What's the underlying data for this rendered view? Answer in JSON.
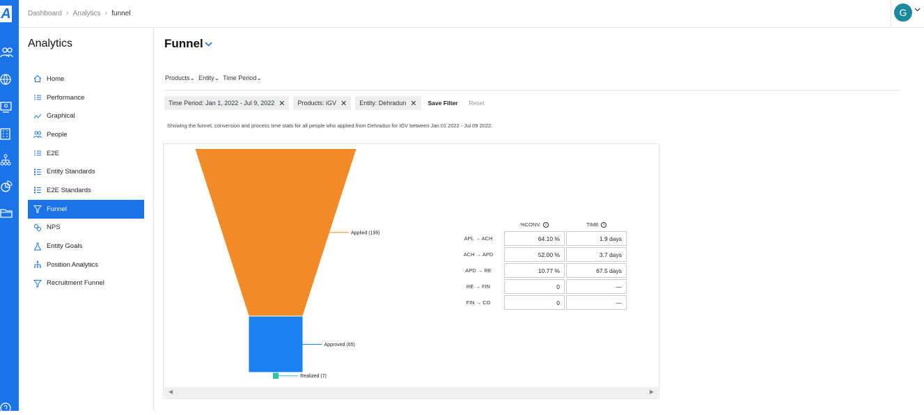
{
  "app": {
    "logo_letter": "A"
  },
  "rail_icons": [
    "people-icon",
    "globe-icon",
    "monitor-icon",
    "building-icon",
    "hierarchy-icon",
    "pie-chart-icon",
    "folder-icon",
    "question-icon"
  ],
  "breadcrumb": [
    "Dashboard",
    "Analytics",
    "funnel"
  ],
  "user": {
    "initial": "G"
  },
  "sidebar": {
    "title": "Analytics",
    "items": [
      {
        "label": "Home",
        "icon": "home-icon",
        "active": false
      },
      {
        "label": "Performance",
        "icon": "list-icon",
        "active": false
      },
      {
        "label": "Graphical",
        "icon": "line-chart-icon",
        "active": false
      },
      {
        "label": "People",
        "icon": "people-icon",
        "active": false
      },
      {
        "label": "E2E",
        "icon": "list-icon",
        "active": false
      },
      {
        "label": "Entity Standards",
        "icon": "checklist-icon",
        "active": false
      },
      {
        "label": "E2E Standards",
        "icon": "checklist-icon",
        "active": false
      },
      {
        "label": "Funnel",
        "icon": "funnel-icon",
        "active": true
      },
      {
        "label": "NPS",
        "icon": "nps-icon",
        "active": false
      },
      {
        "label": "Entity Goals",
        "icon": "flask-icon",
        "active": false
      },
      {
        "label": "Position Analytics",
        "icon": "hierarchy-icon",
        "active": false
      },
      {
        "label": "Recruitment Funnel",
        "icon": "funnel-icon",
        "active": false
      }
    ]
  },
  "page": {
    "title": "Funnel",
    "filters": [
      "Products",
      "Entity",
      "Time Period"
    ],
    "chips": [
      "Time Period: Jan 1, 2022 - Jul 9, 2022",
      "Products: iGV",
      "Entity: Dehradun"
    ],
    "save_filter": "Save Filter",
    "reset": "Reset",
    "info_text": "Showing the funnel, conversion and process time stats for all people who applied from Dehradun for iGV between Jan 01 2022 - Jul 09 2022."
  },
  "chart_data": {
    "type": "funnel",
    "stages": [
      {
        "label": "Applied (195)",
        "value": 195,
        "color": "#f28a26"
      },
      {
        "label": "Approved (65)",
        "value": 65,
        "color": "#1a80f0"
      },
      {
        "label": "Realized (7)",
        "value": 7,
        "color": "#2ec4a5"
      }
    ]
  },
  "conversion_table": {
    "headers": [
      "%CONV.",
      "TIME"
    ],
    "rows": [
      {
        "label": "APL → ACH",
        "conv": "64.10 %",
        "time": "1.9 days"
      },
      {
        "label": "ACH → APD",
        "conv": "52.00 %",
        "time": "3.7 days"
      },
      {
        "label": "APD → RE",
        "conv": "10.77 %",
        "time": "67.5 days"
      },
      {
        "label": "RE → FIN",
        "conv": "0",
        "time": "—"
      },
      {
        "label": "FIN → CO",
        "conv": "0",
        "time": "—"
      }
    ]
  }
}
